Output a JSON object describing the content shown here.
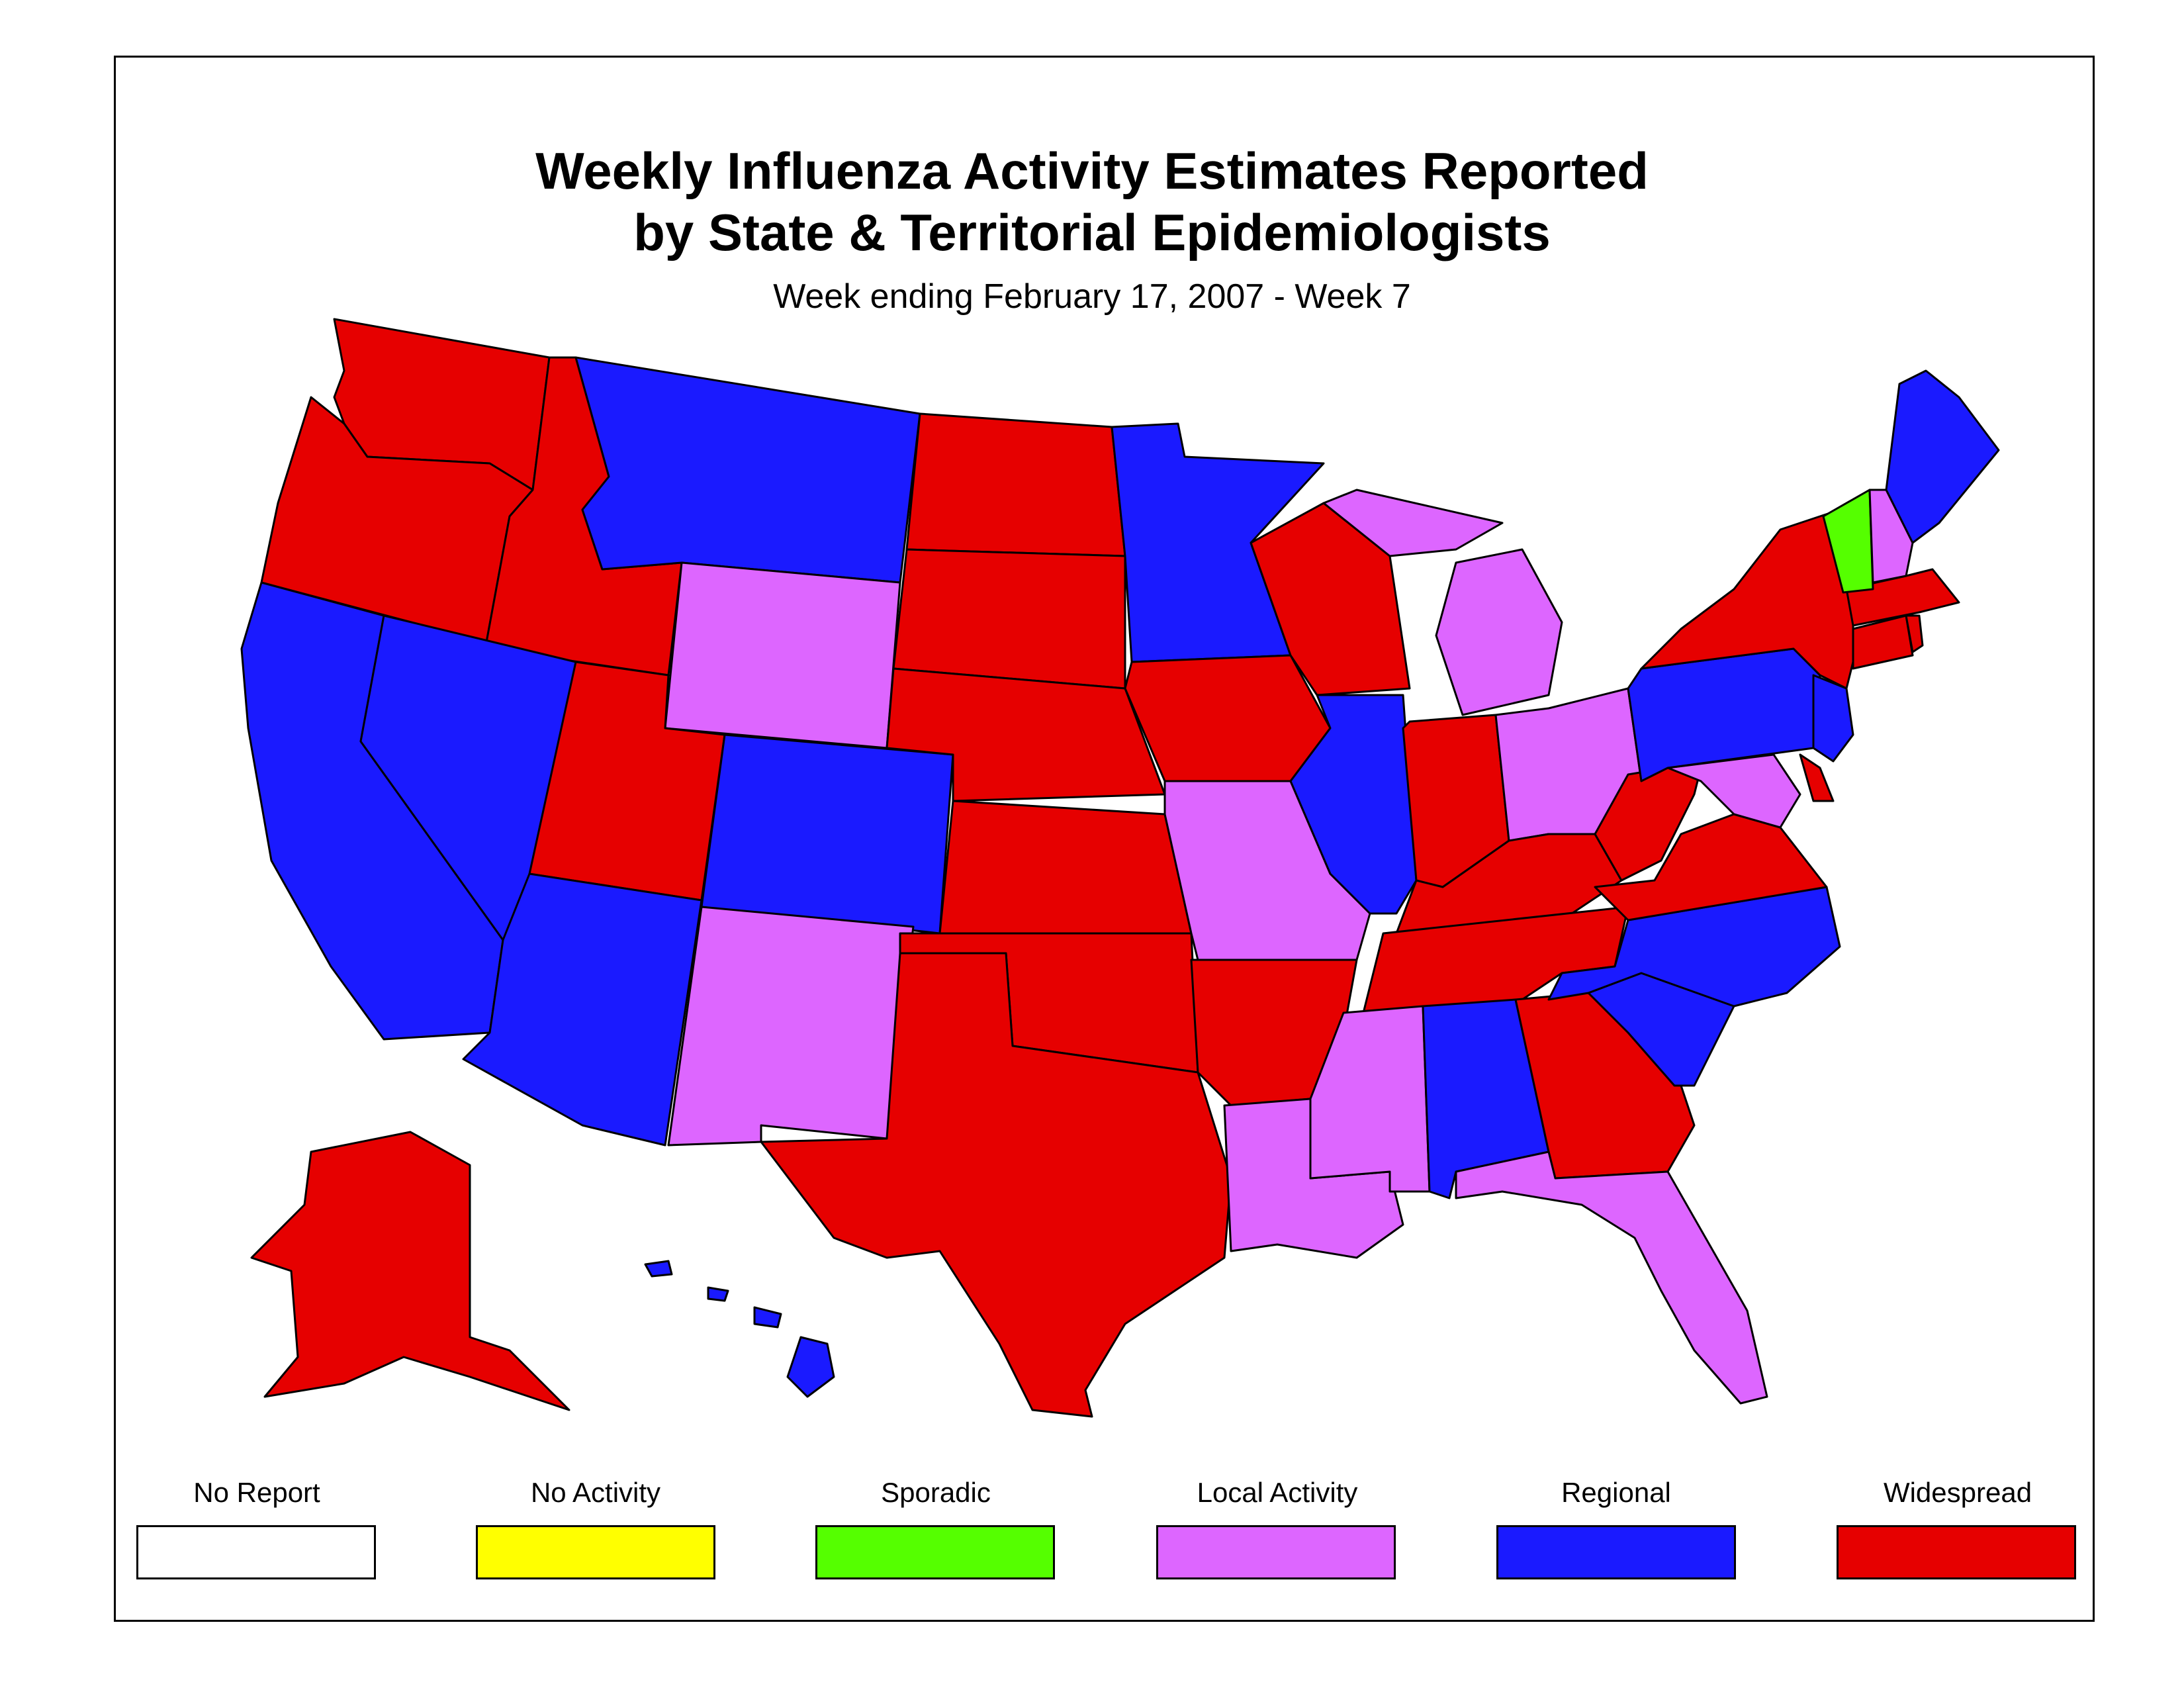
{
  "title_line1": "Weekly Influenza Activity Estimates Reported",
  "title_line2": "by State & Territorial Epidemiologists",
  "subtitle": "Week ending February 17, 2007 - Week 7",
  "colors": {
    "no_report": "#ffffff",
    "no_activity": "#ffff00",
    "sporadic": "#55ff00",
    "local": "#dd66ff",
    "regional": "#1a1aff",
    "widespread": "#e60000"
  },
  "legend": [
    {
      "key": "no_report",
      "label": "No Report"
    },
    {
      "key": "no_activity",
      "label": "No Activity"
    },
    {
      "key": "sporadic",
      "label": "Sporadic"
    },
    {
      "key": "local",
      "label": "Local Activity"
    },
    {
      "key": "regional",
      "label": "Regional"
    },
    {
      "key": "widespread",
      "label": "Widespread"
    }
  ],
  "states": {
    "WA": "widespread",
    "OR": "widespread",
    "CA": "regional",
    "ID": "widespread",
    "NV": "regional",
    "MT": "regional",
    "WY": "local",
    "UT": "widespread",
    "AZ": "regional",
    "CO": "regional",
    "NM": "local",
    "ND": "widespread",
    "SD": "widespread",
    "NE": "widespread",
    "KS": "widespread",
    "OK": "widespread",
    "TX": "widespread",
    "MN": "regional",
    "IA": "widespread",
    "MO": "local",
    "AR": "widespread",
    "LA": "local",
    "WI": "widespread",
    "IL": "regional",
    "MS": "local",
    "MI": "local",
    "IN": "widespread",
    "OH": "local",
    "KY": "widespread",
    "TN": "widespread",
    "AL": "regional",
    "GA": "widespread",
    "FL": "local",
    "SC": "regional",
    "NC": "regional",
    "VA": "widespread",
    "WV": "widespread",
    "MD": "local",
    "DE": "widespread",
    "PA": "regional",
    "NJ": "regional",
    "NY": "widespread",
    "CT": "widespread",
    "RI": "widespread",
    "MA": "widespread",
    "VT": "sporadic",
    "NH": "local",
    "ME": "regional",
    "AK": "widespread",
    "HI": "regional"
  }
}
